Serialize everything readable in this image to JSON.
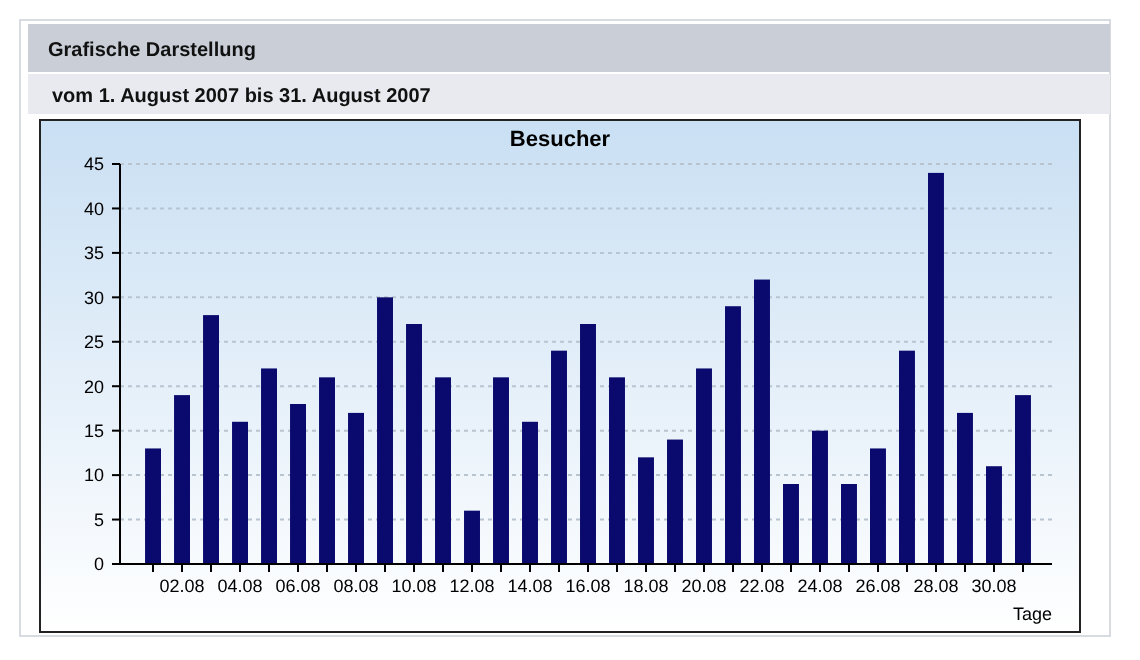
{
  "chart_data": {
    "type": "bar",
    "title": "Besucher",
    "subtitle": "vom 1. August 2007  bis 31. August 2007",
    "annotations": [
      "Grafische Darstellung"
    ],
    "xlabel": "Tage",
    "categories": [
      null,
      "02.08",
      null,
      "04.08",
      null,
      "06.08",
      null,
      "08.08",
      null,
      "10.08",
      null,
      "12.08",
      null,
      "14.08",
      null,
      "16.08",
      null,
      "18.08",
      null,
      "20.08",
      null,
      "22.08",
      null,
      "24.08",
      null,
      "26.08",
      null,
      "28.08",
      null,
      "30.08",
      null
    ],
    "values": [
      13,
      19,
      28,
      16,
      22,
      18,
      21,
      17,
      30,
      27,
      21,
      6,
      21,
      16,
      24,
      27,
      21,
      12,
      14,
      22,
      29,
      32,
      9,
      15,
      9,
      13,
      24,
      44,
      17,
      11,
      19
    ],
    "color": "#0a0a6e",
    "ylim": [
      0,
      45
    ],
    "yticks": [
      0,
      5,
      10,
      15,
      20,
      25,
      30,
      35,
      40,
      45
    ],
    "grid": "y"
  }
}
